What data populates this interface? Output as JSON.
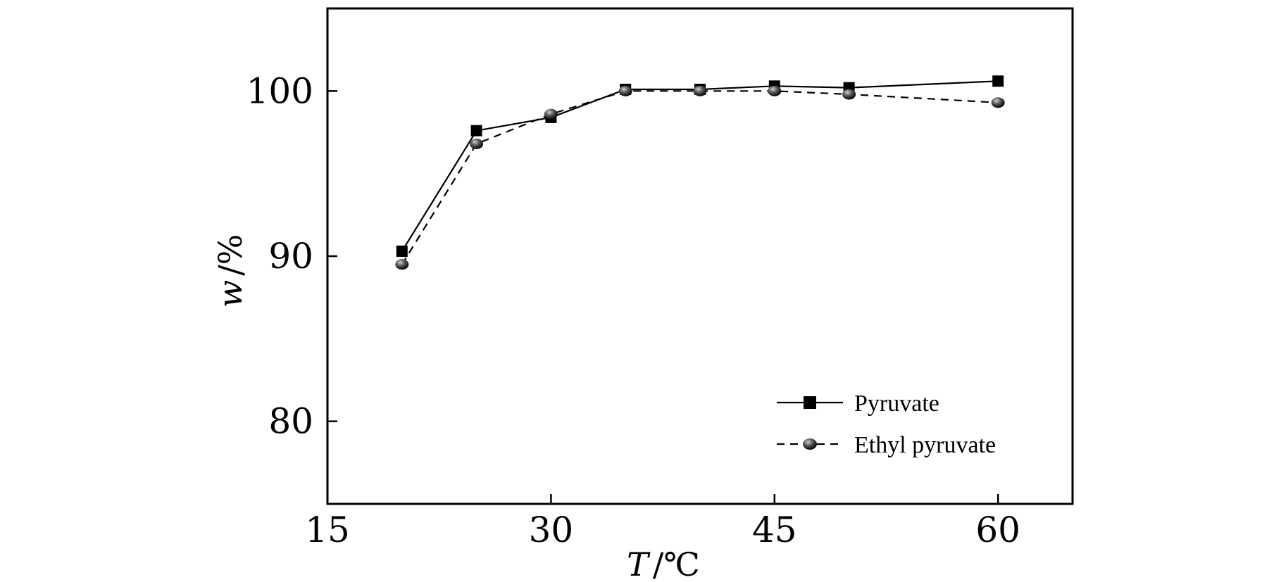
{
  "chart_data": {
    "type": "line",
    "xlabel_var": "T",
    "xlabel_unit": "/℃",
    "ylabel_var": "w",
    "ylabel_unit": "/%",
    "xlim": [
      15,
      65
    ],
    "ylim": [
      75,
      105
    ],
    "xticks": [
      "15",
      "30",
      "45",
      "60"
    ],
    "yticks": [
      "80",
      "90",
      "100"
    ],
    "grid": false,
    "legend_position": "bottom-right",
    "series": [
      {
        "name": "Pyruvate",
        "marker": "square",
        "line_style": "solid",
        "color": "#000000",
        "x": [
          20,
          25,
          30,
          35,
          40,
          45,
          50,
          60
        ],
        "y": [
          90.3,
          97.6,
          98.4,
          100.1,
          100.1,
          100.3,
          100.2,
          100.6
        ]
      },
      {
        "name": "Ethyl pyruvate",
        "marker": "circle",
        "line_style": "dashed",
        "color": "#000000",
        "x": [
          20,
          25,
          30,
          35,
          40,
          45,
          50,
          60
        ],
        "y": [
          89.5,
          96.8,
          98.6,
          100.0,
          100.0,
          100.0,
          99.8,
          99.3
        ]
      }
    ]
  }
}
